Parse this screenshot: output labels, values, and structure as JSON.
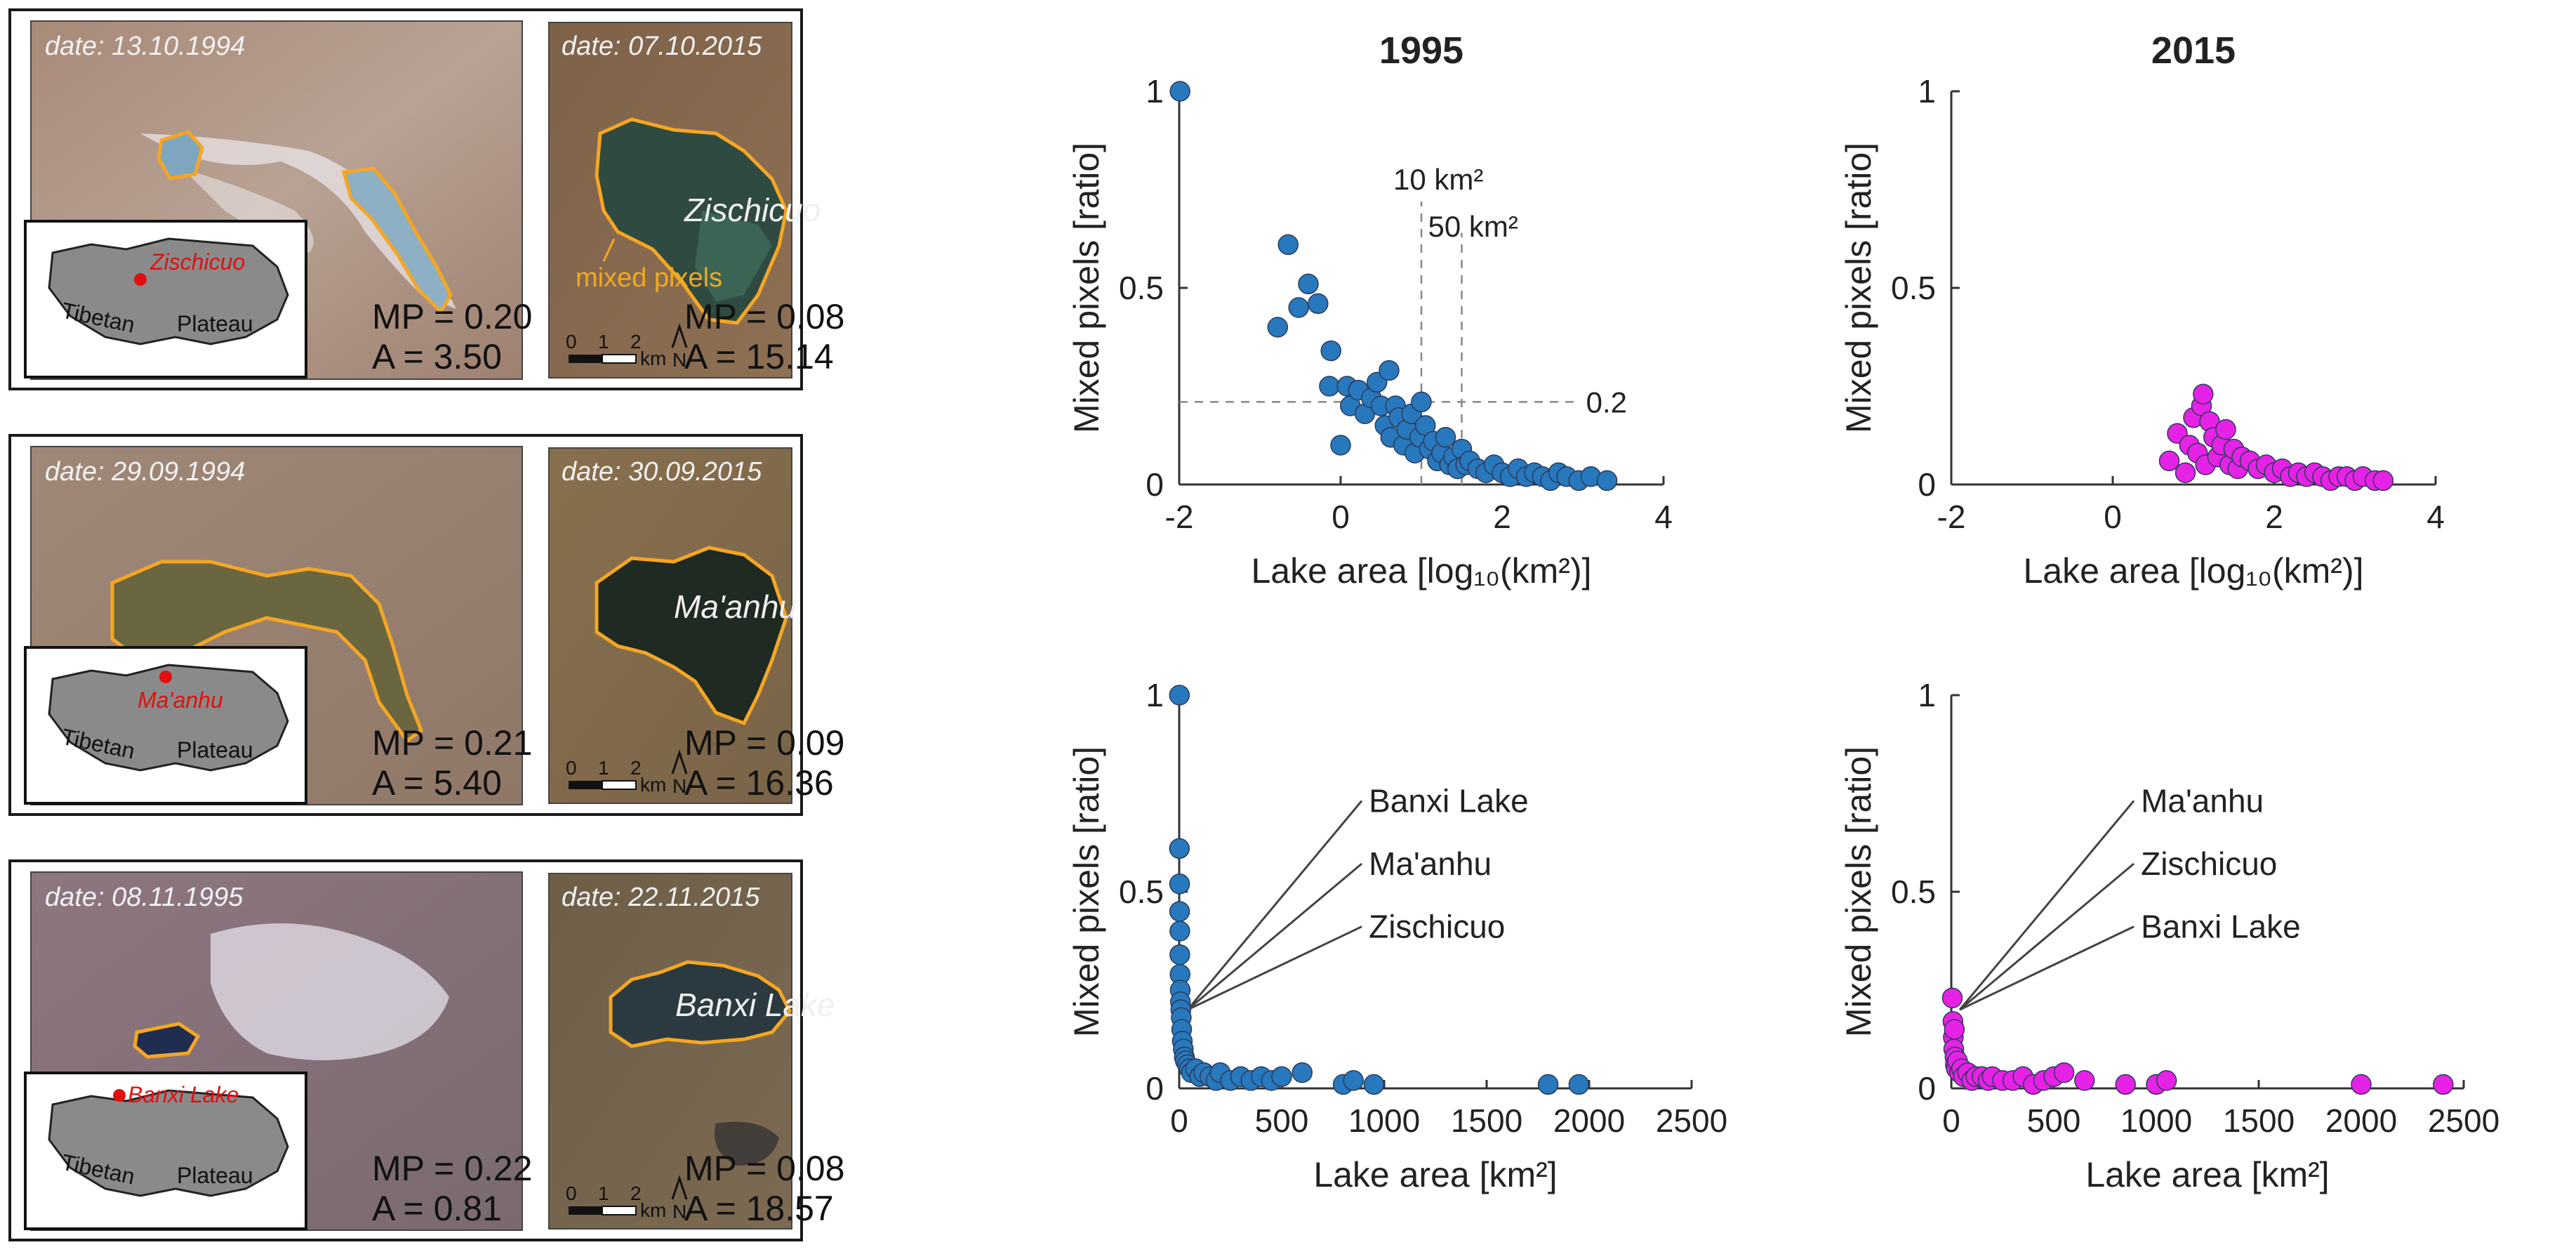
{
  "rows": [
    {
      "left": {
        "date": "date: 13.10.1994",
        "mp": "MP = 0.20",
        "area": "A = 3.50",
        "location": "Zischicuo",
        "plateau_word1": "Tibetan",
        "plateau_word2": "Plateau"
      },
      "right": {
        "date": "date: 07.10.2015",
        "lake": "Zischicuo",
        "note": "mixed pixels",
        "mp": "MP = 0.08",
        "area": "A = 15.14",
        "scale_ticks": [
          "0",
          "1",
          "2"
        ],
        "scale_unit": "km",
        "north": "N"
      }
    },
    {
      "left": {
        "date": "date: 29.09.1994",
        "mp": "MP = 0.21",
        "area": "A = 5.40",
        "location": "Ma'anhu",
        "plateau_word1": "Tibetan",
        "plateau_word2": "Plateau"
      },
      "right": {
        "date": "date: 30.09.2015",
        "lake": "Ma'anhu",
        "mp": "MP = 0.09",
        "area": "A = 16.36",
        "scale_ticks": [
          "0",
          "1",
          "2"
        ],
        "scale_unit": "km",
        "north": "N"
      }
    },
    {
      "left": {
        "date": "date: 08.11.1995",
        "mp": "MP = 0.22",
        "area": "A = 0.81",
        "location": "Banxi Lake",
        "plateau_word1": "Tibetan",
        "plateau_word2": "Plateau"
      },
      "right": {
        "date": "date: 22.11.2015",
        "lake": "Banxi Lake",
        "mp": "MP = 0.08",
        "area": "A = 18.57",
        "scale_ticks": [
          "0",
          "1",
          "2"
        ],
        "scale_unit": "km",
        "north": "N"
      }
    }
  ],
  "colors": {
    "series_1995": "#2878bd",
    "series_2015": "#e622e6",
    "outline": "#f5a623"
  },
  "chart_data": [
    {
      "type": "scatter",
      "title": "1995",
      "xlabel": "Lake area [log₁₀(km²)]",
      "ylabel": "Mixed pixels [ratio]",
      "xlim": [
        -2,
        4
      ],
      "ylim": [
        0,
        1
      ],
      "xticks": [
        "-2",
        "0",
        "2",
        "4"
      ],
      "yticks": [
        "0",
        "0.5",
        "1"
      ],
      "grid": false,
      "reference_lines": {
        "x": [
          1.0,
          1.5
        ],
        "y": 0.21,
        "labels": [
          "10 km²",
          "50 km²",
          "0.2"
        ]
      },
      "x": [
        -1.99,
        -0.78,
        -0.65,
        -0.52,
        -0.4,
        -0.28,
        -0.12,
        -0.14,
        0.0,
        0.08,
        0.12,
        0.22,
        0.3,
        0.38,
        0.45,
        0.5,
        0.55,
        0.6,
        0.62,
        0.68,
        0.72,
        0.78,
        0.82,
        0.88,
        0.92,
        0.98,
        1.0,
        1.05,
        1.1,
        1.15,
        1.2,
        1.25,
        1.3,
        1.35,
        1.4,
        1.45,
        1.5,
        1.55,
        1.6,
        1.7,
        1.8,
        1.9,
        2.0,
        2.1,
        2.2,
        2.3,
        2.4,
        2.5,
        2.6,
        2.7,
        2.8,
        2.95,
        3.1,
        3.3
      ],
      "y": [
        1.0,
        0.4,
        0.61,
        0.45,
        0.51,
        0.46,
        0.34,
        0.25,
        0.1,
        0.25,
        0.2,
        0.24,
        0.18,
        0.22,
        0.26,
        0.2,
        0.15,
        0.29,
        0.12,
        0.2,
        0.17,
        0.1,
        0.14,
        0.18,
        0.08,
        0.12,
        0.21,
        0.15,
        0.09,
        0.11,
        0.06,
        0.08,
        0.12,
        0.05,
        0.07,
        0.04,
        0.09,
        0.05,
        0.06,
        0.04,
        0.03,
        0.05,
        0.03,
        0.02,
        0.04,
        0.02,
        0.03,
        0.02,
        0.01,
        0.03,
        0.02,
        0.01,
        0.02,
        0.01
      ]
    },
    {
      "type": "scatter",
      "title": "2015",
      "xlabel": "Lake area [log₁₀(km²)]",
      "ylabel": "Mixed pixels [ratio]",
      "xlim": [
        -2,
        4
      ],
      "ylim": [
        0,
        1
      ],
      "xticks": [
        "-2",
        "0",
        "2",
        "4"
      ],
      "yticks": [
        "0",
        "0.5",
        "1"
      ],
      "grid": false,
      "x": [
        0.7,
        0.8,
        0.9,
        0.95,
        1.0,
        1.05,
        1.1,
        1.12,
        1.15,
        1.2,
        1.25,
        1.3,
        1.35,
        1.4,
        1.45,
        1.5,
        1.55,
        1.6,
        1.7,
        1.8,
        1.9,
        2.0,
        2.1,
        2.2,
        2.3,
        2.4,
        2.5,
        2.6,
        2.7,
        2.8,
        2.9,
        3.0,
        3.1,
        3.25,
        3.35
      ],
      "y": [
        0.06,
        0.13,
        0.03,
        0.1,
        0.17,
        0.08,
        0.2,
        0.23,
        0.05,
        0.16,
        0.12,
        0.07,
        0.1,
        0.14,
        0.05,
        0.09,
        0.04,
        0.07,
        0.06,
        0.04,
        0.05,
        0.03,
        0.04,
        0.02,
        0.03,
        0.02,
        0.03,
        0.02,
        0.01,
        0.02,
        0.02,
        0.01,
        0.02,
        0.01,
        0.01
      ]
    },
    {
      "type": "scatter",
      "xlabel": "Lake area [km²]",
      "ylabel": "Mixed pixels [ratio]",
      "xlim": [
        0,
        2500
      ],
      "ylim": [
        0,
        1
      ],
      "xticks": [
        "0",
        "500",
        "1000",
        "1500",
        "2000",
        "2500"
      ],
      "yticks": [
        "0",
        "0.5",
        "1"
      ],
      "grid": false,
      "annotations": [
        "Banxi Lake",
        "Ma'anhu",
        "Zischicuo"
      ],
      "x": [
        1,
        1,
        2,
        2,
        3,
        3,
        4,
        5,
        6,
        8,
        10,
        12,
        15,
        20,
        25,
        30,
        40,
        50,
        60,
        80,
        100,
        120,
        150,
        180,
        200,
        250,
        300,
        350,
        400,
        450,
        500,
        600,
        800,
        850,
        950,
        1800,
        1950
      ],
      "y": [
        1.0,
        0.61,
        0.52,
        0.45,
        0.4,
        0.34,
        0.29,
        0.25,
        0.22,
        0.2,
        0.18,
        0.15,
        0.12,
        0.1,
        0.08,
        0.07,
        0.06,
        0.05,
        0.04,
        0.05,
        0.03,
        0.04,
        0.03,
        0.02,
        0.04,
        0.02,
        0.03,
        0.02,
        0.03,
        0.02,
        0.03,
        0.04,
        0.01,
        0.02,
        0.01,
        0.01,
        0.01
      ]
    },
    {
      "type": "scatter",
      "xlabel": "Lake area [km²]",
      "ylabel": "Mixed pixels [ratio]",
      "xlim": [
        0,
        2500
      ],
      "ylim": [
        0,
        1
      ],
      "xticks": [
        "0",
        "500",
        "1000",
        "1500",
        "2000",
        "2500"
      ],
      "yticks": [
        "0",
        "0.5",
        "1"
      ],
      "grid": false,
      "annotations": [
        "Ma'anhu",
        "Zischicuo",
        "Banxi Lake"
      ],
      "x": [
        5,
        8,
        10,
        12,
        15,
        18,
        20,
        25,
        30,
        40,
        50,
        60,
        80,
        100,
        120,
        150,
        180,
        200,
        250,
        300,
        350,
        400,
        450,
        500,
        550,
        650,
        850,
        1000,
        1050,
        2000,
        2400
      ],
      "y": [
        0.23,
        0.17,
        0.13,
        0.1,
        0.15,
        0.08,
        0.06,
        0.05,
        0.07,
        0.04,
        0.05,
        0.03,
        0.04,
        0.02,
        0.03,
        0.03,
        0.02,
        0.03,
        0.02,
        0.02,
        0.03,
        0.01,
        0.02,
        0.03,
        0.04,
        0.02,
        0.01,
        0.01,
        0.02,
        0.01,
        0.01
      ]
    }
  ]
}
